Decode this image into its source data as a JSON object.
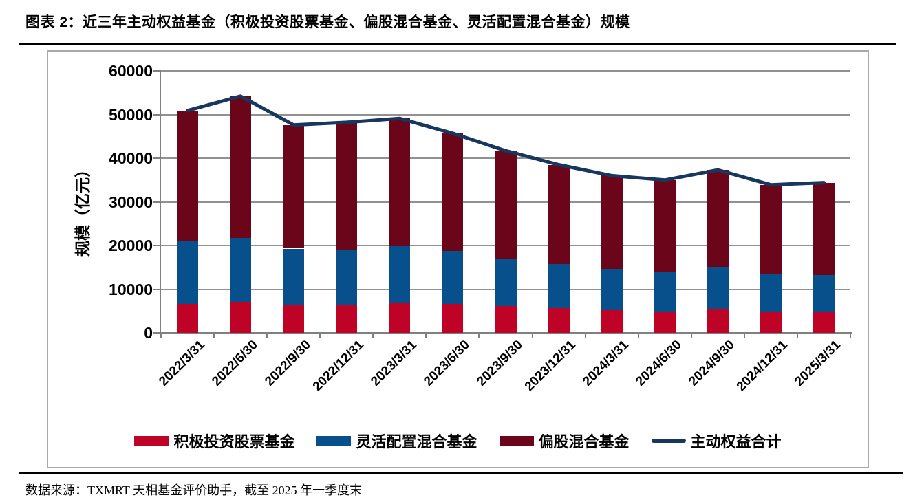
{
  "header": {
    "title": "图表 2：近三年主动权益基金（积极投资股票基金、偏股混合基金、灵活配置混合基金）规模"
  },
  "footer": {
    "source": "数据来源：TXMRT 天相基金评价助手，截至 2025 年一季度末"
  },
  "chart_data": {
    "type": "bar",
    "stacked": true,
    "title": "",
    "ylabel": "规模（亿元）",
    "xlabel": "",
    "ylim": [
      0,
      60000
    ],
    "ytick_interval": 10000,
    "grid": true,
    "legend_position": "bottom",
    "categories": [
      "2022/3/31",
      "2022/6/30",
      "2022/9/30",
      "2022/12/31",
      "2023/3/31",
      "2023/6/30",
      "2023/9/30",
      "2023/12/31",
      "2024/3/31",
      "2024/6/30",
      "2024/9/30",
      "2024/12/31",
      "2025/3/31"
    ],
    "series": [
      {
        "name": "积极投资股票基金",
        "type": "bar",
        "color": "#BE0327",
        "values": [
          6700,
          7100,
          6300,
          6500,
          6900,
          6600,
          6200,
          5700,
          5200,
          4900,
          5400,
          4900,
          4900
        ]
      },
      {
        "name": "灵活配置混合基金",
        "type": "bar",
        "color": "#07508C",
        "values": [
          14200,
          14600,
          13000,
          12600,
          12900,
          12100,
          10800,
          10100,
          9400,
          9100,
          9700,
          8500,
          8400
        ]
      },
      {
        "name": "偏股混合基金",
        "type": "bar",
        "color": "#6B0519",
        "values": [
          30000,
          32500,
          28300,
          29100,
          29300,
          27000,
          24700,
          22700,
          21400,
          21000,
          22200,
          20500,
          21100
        ]
      },
      {
        "name": "主动权益合计",
        "type": "line",
        "color": "#17375E",
        "values": [
          50900,
          54200,
          47600,
          48200,
          49100,
          45700,
          41700,
          38500,
          36000,
          35000,
          37300,
          33900,
          34400
        ]
      }
    ],
    "axis_colors": {
      "gridline": "#919191",
      "axis": "#808080"
    }
  }
}
